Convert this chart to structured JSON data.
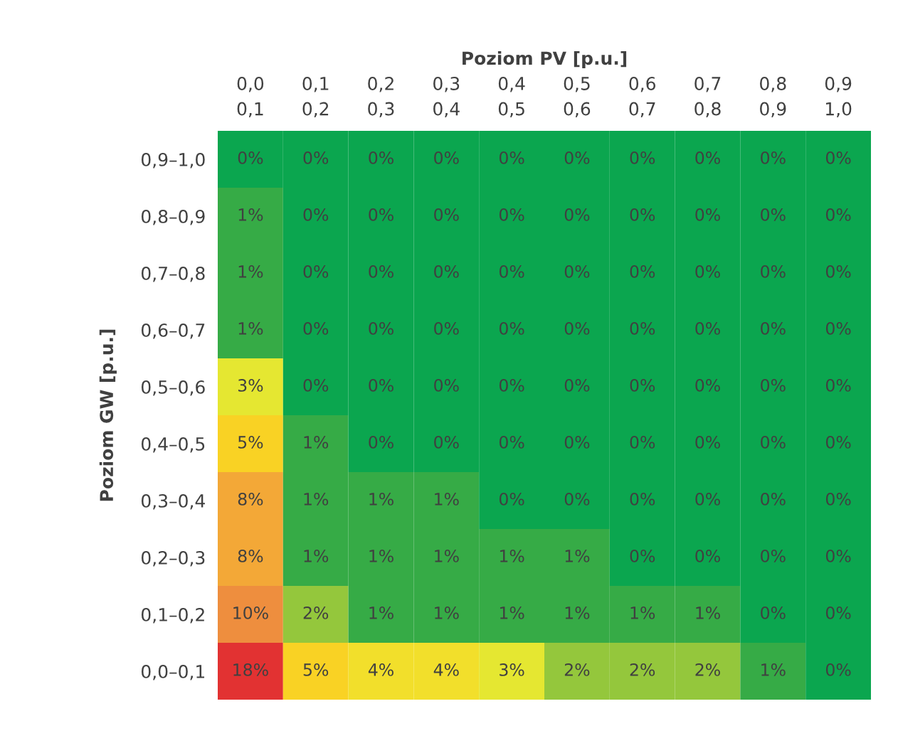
{
  "chart_data": {
    "type": "heatmap",
    "xlabel": "Poziom PV [p.u.]",
    "ylabel": "Poziom GW [p.u.]",
    "categories": [
      "0,0\n0,1",
      "0,1\n0,2",
      "0,2\n0,3",
      "0,3\n0,4",
      "0,4\n0,5",
      "0,5\n0,6",
      "0,6\n0,7",
      "0,7\n0,8",
      "0,8\n0,9",
      "0,9\n1,0"
    ],
    "y_categories": [
      "0,9–1,0",
      "0,8–0,9",
      "0,7–0,8",
      "0,6–0,7",
      "0,5–0,6",
      "0,4–0,5",
      "0,3–0,4",
      "0,2–0,3",
      "0,1–0,2",
      "0,0–0,1"
    ],
    "cells": [
      [
        0,
        0,
        0,
        0,
        0,
        0,
        0,
        0,
        0,
        0
      ],
      [
        1,
        0,
        0,
        0,
        0,
        0,
        0,
        0,
        0,
        0
      ],
      [
        1,
        0,
        0,
        0,
        0,
        0,
        0,
        0,
        0,
        0
      ],
      [
        1,
        0,
        0,
        0,
        0,
        0,
        0,
        0,
        0,
        0
      ],
      [
        3,
        0,
        0,
        0,
        0,
        0,
        0,
        0,
        0,
        0
      ],
      [
        5,
        1,
        0,
        0,
        0,
        0,
        0,
        0,
        0,
        0
      ],
      [
        8,
        1,
        1,
        1,
        0,
        0,
        0,
        0,
        0,
        0
      ],
      [
        8,
        1,
        1,
        1,
        1,
        1,
        0,
        0,
        0,
        0
      ],
      [
        10,
        2,
        1,
        1,
        1,
        1,
        1,
        1,
        0,
        0
      ],
      [
        18,
        5,
        4,
        4,
        3,
        2,
        2,
        2,
        1,
        0
      ]
    ],
    "cell_labels": [
      [
        "0%",
        "0%",
        "0%",
        "0%",
        "0%",
        "0%",
        "0%",
        "0%",
        "0%",
        "0%"
      ],
      [
        "1%",
        "0%",
        "0%",
        "0%",
        "0%",
        "0%",
        "0%",
        "0%",
        "0%",
        "0%"
      ],
      [
        "1%",
        "0%",
        "0%",
        "0%",
        "0%",
        "0%",
        "0%",
        "0%",
        "0%",
        "0%"
      ],
      [
        "1%",
        "0%",
        "0%",
        "0%",
        "0%",
        "0%",
        "0%",
        "0%",
        "0%",
        "0%"
      ],
      [
        "3%",
        "0%",
        "0%",
        "0%",
        "0%",
        "0%",
        "0%",
        "0%",
        "0%",
        "0%"
      ],
      [
        "5%",
        "1%",
        "0%",
        "0%",
        "0%",
        "0%",
        "0%",
        "0%",
        "0%",
        "0%"
      ],
      [
        "8%",
        "1%",
        "1%",
        "1%",
        "0%",
        "0%",
        "0%",
        "0%",
        "0%",
        "0%"
      ],
      [
        "8%",
        "1%",
        "1%",
        "1%",
        "1%",
        "1%",
        "0%",
        "0%",
        "0%",
        "0%"
      ],
      [
        "10%",
        "2%",
        "1%",
        "1%",
        "1%",
        "1%",
        "1%",
        "1%",
        "0%",
        "0%"
      ],
      [
        "18%",
        "5%",
        "4%",
        "4%",
        "3%",
        "2%",
        "2%",
        "2%",
        "1%",
        "0%"
      ]
    ]
  }
}
